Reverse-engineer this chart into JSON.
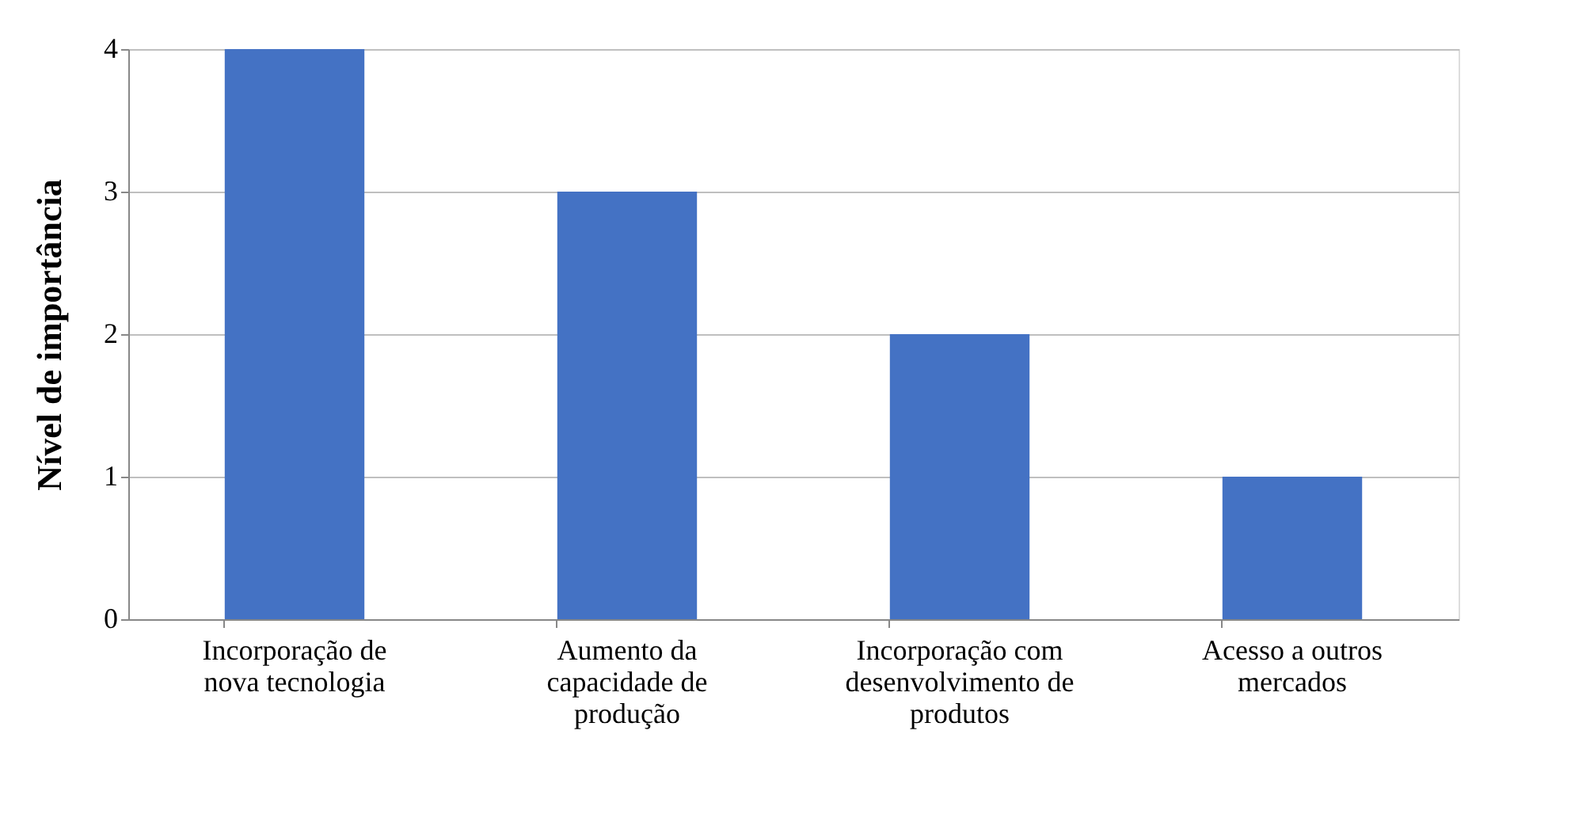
{
  "chart_data": {
    "type": "bar",
    "ylabel": "Nível de importância",
    "categories": [
      "Incorporação de\nnova tecnologia",
      "Aumento da\ncapacidade de\nprodução",
      "Incorporação com\ndesenvolvimento de\nprodutos",
      "Acesso a outros\nmercados"
    ],
    "values": [
      4,
      3,
      2,
      1
    ],
    "color": "#4472c4",
    "ylim": [
      0,
      4
    ],
    "yticks": [
      0,
      1,
      2,
      3,
      4
    ],
    "grid": "y"
  }
}
